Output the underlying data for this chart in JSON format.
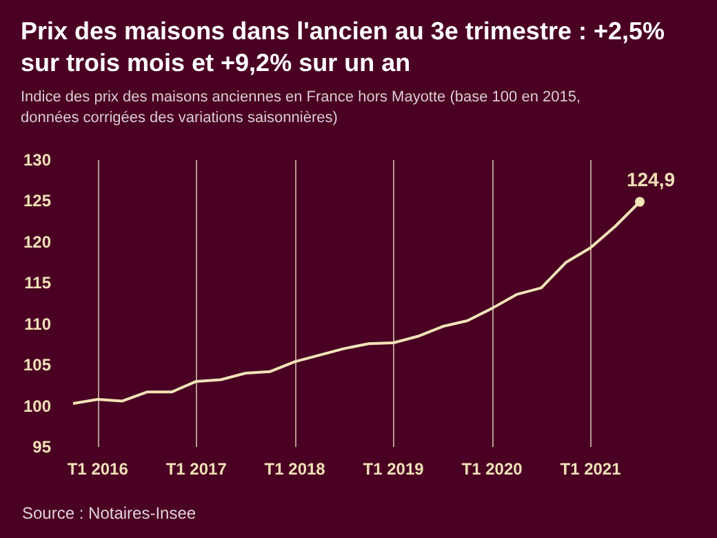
{
  "chart_data": {
    "type": "line",
    "title": "Prix des maisons dans l'ancien au 3e trimestre : +2,5% sur trois mois et +9,2% sur un an",
    "subtitle": "Indice des prix des maisons anciennes en France hors Mayotte (base 100 en 2015, données corrigées des variations saisonnières)",
    "categories": [
      null,
      "T1 2016",
      null,
      null,
      null,
      "T1 2017",
      null,
      null,
      null,
      "T1 2018",
      null,
      null,
      null,
      "T1 2019",
      null,
      null,
      null,
      "T1 2020",
      null,
      null,
      null,
      "T1 2021",
      null,
      null
    ],
    "series": [
      {
        "color": "#f3e3b8",
        "values": [
          100.3,
          100.8,
          100.6,
          101.7,
          101.7,
          103.0,
          103.2,
          104.0,
          104.2,
          105.4,
          106.2,
          107.0,
          107.6,
          107.7,
          108.5,
          109.7,
          110.4,
          111.9,
          113.6,
          114.4,
          117.5,
          119.3,
          121.9,
          124.9
        ],
        "value_labels": [
          null,
          null,
          null,
          null,
          null,
          null,
          null,
          null,
          null,
          null,
          null,
          null,
          null,
          null,
          null,
          null,
          null,
          null,
          null,
          null,
          null,
          null,
          null,
          "124,9"
        ]
      }
    ],
    "ylim": [
      95,
      130
    ],
    "yticks": [
      95,
      100,
      105,
      110,
      115,
      120,
      125,
      130
    ],
    "grid": "x",
    "marker": "none",
    "line_style": "solid",
    "annotations": [
      "Source : Notaires-Insee"
    ]
  }
}
